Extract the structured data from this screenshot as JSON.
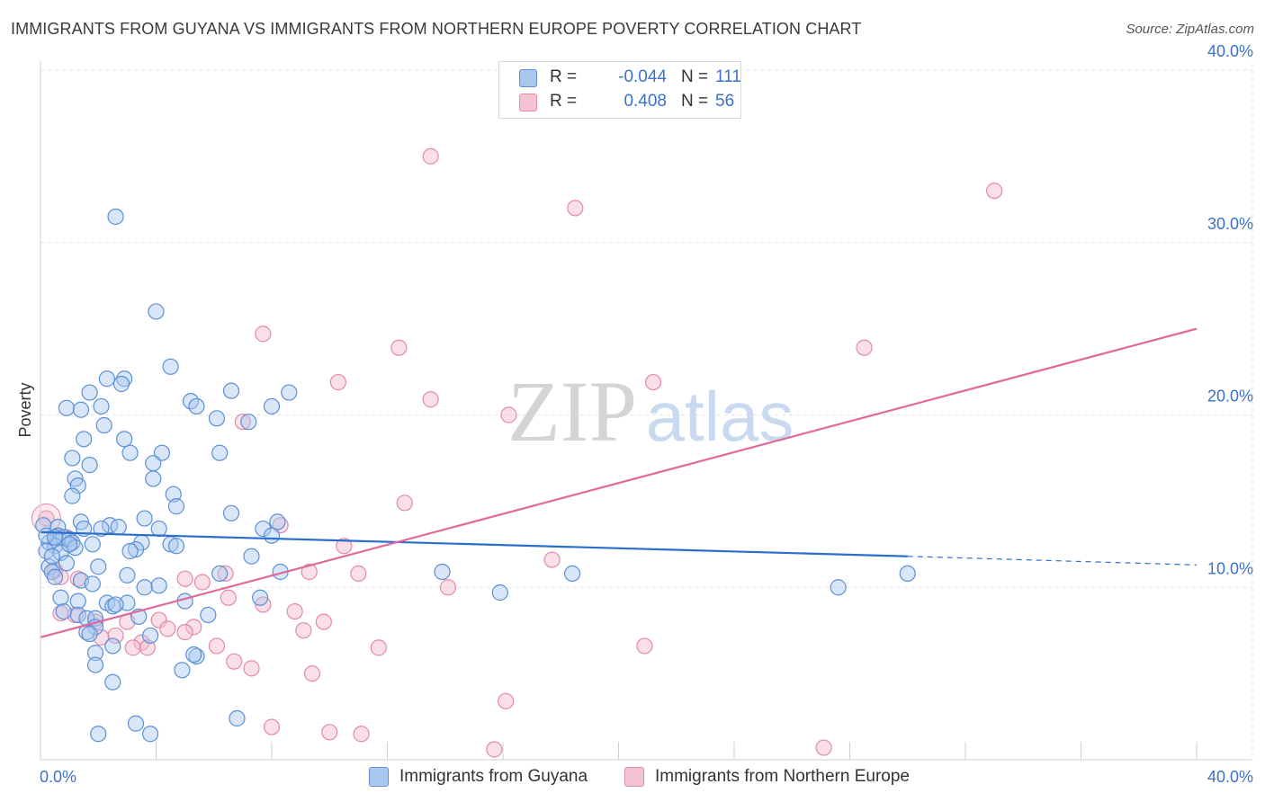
{
  "title": "IMMIGRANTS FROM GUYANA VS IMMIGRANTS FROM NORTHERN EUROPE POVERTY CORRELATION CHART",
  "source": "Source: ZipAtlas.com",
  "colors": {
    "blue_fill": "#a8c8f0",
    "blue_stroke": "#5b8fd6",
    "blue_line": "#2a6fcc",
    "pink_fill": "#f5b8cb",
    "pink_stroke": "#e28aa8",
    "pink_line": "#e0699a",
    "axis_text": "#3b72c9",
    "grid": "#e2e2e2"
  },
  "legend": {
    "rows": [
      {
        "r_label": "R =",
        "r_value": "-0.044",
        "n_label": "N =",
        "n_value": "111"
      },
      {
        "r_label": "R =",
        "r_value": "0.408",
        "n_label": "N =",
        "n_value": "56"
      }
    ]
  },
  "watermark": {
    "part1": "ZIP",
    "part2": "atlas"
  },
  "chart_data": {
    "type": "scatter",
    "title": "IMMIGRANTS FROM GUYANA VS IMMIGRANTS FROM NORTHERN EUROPE POVERTY CORRELATION CHART",
    "xlabel": "",
    "ylabel": "Poverty",
    "xlim": [
      0,
      40
    ],
    "ylim": [
      0,
      40
    ],
    "x_tick_labels": [
      "0.0%",
      "40.0%"
    ],
    "y_tick_labels": [
      "10.0%",
      "20.0%",
      "30.0%",
      "40.0%"
    ],
    "y_ticks": [
      10,
      20,
      30,
      40
    ],
    "grid": true,
    "legend_position": "top-center",
    "series": [
      {
        "name": "Immigrants from Guyana",
        "R": -0.044,
        "N": 111,
        "trend": {
          "x0": 0,
          "y0": 13.2,
          "x1": 30,
          "y1": 11.8,
          "dashed_to_x": 40,
          "dashed_to_y": 11.3
        },
        "points": [
          [
            2.6,
            31.5
          ],
          [
            4.0,
            26.0
          ],
          [
            4.5,
            22.8
          ],
          [
            2.3,
            22.1
          ],
          [
            2.9,
            22.1
          ],
          [
            2.8,
            21.8
          ],
          [
            6.6,
            21.4
          ],
          [
            8.6,
            21.3
          ],
          [
            1.7,
            21.3
          ],
          [
            5.2,
            20.8
          ],
          [
            5.4,
            20.5
          ],
          [
            0.9,
            20.4
          ],
          [
            2.1,
            20.5
          ],
          [
            1.4,
            20.3
          ],
          [
            8.0,
            20.5
          ],
          [
            6.1,
            19.8
          ],
          [
            7.2,
            19.6
          ],
          [
            2.2,
            19.4
          ],
          [
            1.5,
            18.6
          ],
          [
            2.9,
            18.6
          ],
          [
            3.1,
            17.8
          ],
          [
            4.2,
            17.8
          ],
          [
            6.2,
            17.8
          ],
          [
            1.1,
            17.5
          ],
          [
            3.9,
            17.2
          ],
          [
            1.7,
            17.1
          ],
          [
            3.9,
            16.3
          ],
          [
            1.2,
            16.3
          ],
          [
            1.3,
            15.9
          ],
          [
            1.1,
            15.3
          ],
          [
            4.6,
            15.4
          ],
          [
            4.7,
            14.7
          ],
          [
            6.6,
            14.3
          ],
          [
            3.6,
            14.0
          ],
          [
            1.4,
            13.8
          ],
          [
            2.4,
            13.6
          ],
          [
            2.7,
            13.5
          ],
          [
            4.1,
            13.4
          ],
          [
            7.7,
            13.4
          ],
          [
            8.2,
            13.8
          ],
          [
            8.0,
            13.0
          ],
          [
            2.1,
            13.4
          ],
          [
            0.6,
            13.5
          ],
          [
            0.1,
            13.6
          ],
          [
            1.5,
            13.4
          ],
          [
            0.6,
            13.0
          ],
          [
            0.8,
            12.9
          ],
          [
            1.0,
            12.8
          ],
          [
            1.1,
            12.6
          ],
          [
            0.3,
            12.6
          ],
          [
            0.5,
            12.4
          ],
          [
            1.8,
            12.5
          ],
          [
            3.5,
            12.6
          ],
          [
            3.3,
            12.2
          ],
          [
            3.1,
            12.1
          ],
          [
            4.5,
            12.5
          ],
          [
            4.7,
            12.4
          ],
          [
            1.2,
            12.3
          ],
          [
            0.2,
            12.1
          ],
          [
            0.7,
            12.0
          ],
          [
            7.3,
            11.8
          ],
          [
            0.9,
            11.4
          ],
          [
            0.3,
            11.2
          ],
          [
            2.0,
            11.2
          ],
          [
            0.4,
            10.9
          ],
          [
            3.0,
            10.7
          ],
          [
            6.2,
            10.8
          ],
          [
            8.3,
            10.9
          ],
          [
            13.9,
            10.9
          ],
          [
            18.4,
            10.8
          ],
          [
            1.4,
            10.4
          ],
          [
            0.5,
            10.6
          ],
          [
            3.6,
            10.0
          ],
          [
            4.1,
            10.1
          ],
          [
            15.9,
            9.7
          ],
          [
            0.7,
            9.4
          ],
          [
            7.6,
            9.4
          ],
          [
            5.0,
            9.2
          ],
          [
            2.3,
            9.1
          ],
          [
            2.5,
            8.9
          ],
          [
            3.0,
            9.1
          ],
          [
            1.3,
            9.2
          ],
          [
            1.3,
            8.4
          ],
          [
            5.8,
            8.4
          ],
          [
            1.6,
            8.2
          ],
          [
            1.9,
            8.2
          ],
          [
            3.4,
            8.3
          ],
          [
            1.9,
            7.7
          ],
          [
            1.6,
            7.4
          ],
          [
            1.7,
            7.3
          ],
          [
            3.8,
            7.2
          ],
          [
            2.5,
            6.6
          ],
          [
            5.4,
            6.0
          ],
          [
            5.3,
            6.1
          ],
          [
            1.9,
            6.2
          ],
          [
            1.9,
            5.5
          ],
          [
            4.9,
            5.2
          ],
          [
            2.5,
            4.5
          ],
          [
            3.3,
            2.1
          ],
          [
            6.8,
            2.4
          ],
          [
            2.0,
            1.5
          ],
          [
            3.8,
            1.5
          ],
          [
            27.6,
            10.0
          ],
          [
            30.0,
            10.8
          ],
          [
            0.2,
            13.0
          ],
          [
            1.0,
            12.5
          ],
          [
            0.4,
            11.8
          ],
          [
            1.8,
            10.2
          ],
          [
            2.6,
            9.0
          ],
          [
            0.8,
            8.6
          ],
          [
            0.5,
            12.9
          ]
        ]
      },
      {
        "name": "Immigrants from Northern Europe",
        "R": 0.408,
        "N": 56,
        "trend": {
          "x0": 0,
          "y0": 7.1,
          "x1": 40,
          "y1": 25.0
        },
        "points": [
          [
            13.5,
            35.0
          ],
          [
            18.5,
            32.0
          ],
          [
            33.0,
            33.0
          ],
          [
            7.7,
            24.7
          ],
          [
            12.4,
            23.9
          ],
          [
            28.5,
            23.9
          ],
          [
            10.3,
            21.9
          ],
          [
            21.2,
            21.9
          ],
          [
            13.5,
            20.9
          ],
          [
            16.2,
            20.0
          ],
          [
            7.0,
            19.6
          ],
          [
            12.6,
            14.9
          ],
          [
            0.2,
            14.0
          ],
          [
            8.3,
            13.6
          ],
          [
            0.9,
            12.9
          ],
          [
            10.5,
            12.4
          ],
          [
            17.7,
            11.6
          ],
          [
            0.5,
            11.0
          ],
          [
            0.7,
            10.6
          ],
          [
            9.3,
            10.9
          ],
          [
            11.0,
            10.8
          ],
          [
            5.0,
            10.5
          ],
          [
            6.4,
            10.8
          ],
          [
            14.1,
            10.0
          ],
          [
            5.6,
            10.3
          ],
          [
            6.5,
            9.4
          ],
          [
            7.7,
            9.0
          ],
          [
            0.7,
            8.5
          ],
          [
            1.2,
            8.4
          ],
          [
            8.8,
            8.6
          ],
          [
            1.9,
            8.0
          ],
          [
            4.1,
            8.1
          ],
          [
            3.0,
            8.0
          ],
          [
            9.8,
            8.0
          ],
          [
            5.3,
            7.7
          ],
          [
            4.4,
            7.6
          ],
          [
            5.0,
            7.4
          ],
          [
            9.1,
            7.5
          ],
          [
            2.6,
            7.2
          ],
          [
            2.1,
            7.1
          ],
          [
            3.5,
            6.8
          ],
          [
            3.2,
            6.5
          ],
          [
            3.7,
            6.5
          ],
          [
            6.1,
            6.6
          ],
          [
            11.7,
            6.5
          ],
          [
            20.9,
            6.6
          ],
          [
            6.7,
            5.7
          ],
          [
            7.3,
            5.3
          ],
          [
            9.4,
            5.0
          ],
          [
            16.1,
            3.4
          ],
          [
            8.0,
            1.9
          ],
          [
            10.0,
            1.6
          ],
          [
            11.1,
            1.5
          ],
          [
            15.7,
            0.6
          ],
          [
            27.1,
            0.7
          ],
          [
            1.3,
            10.5
          ]
        ]
      }
    ]
  }
}
